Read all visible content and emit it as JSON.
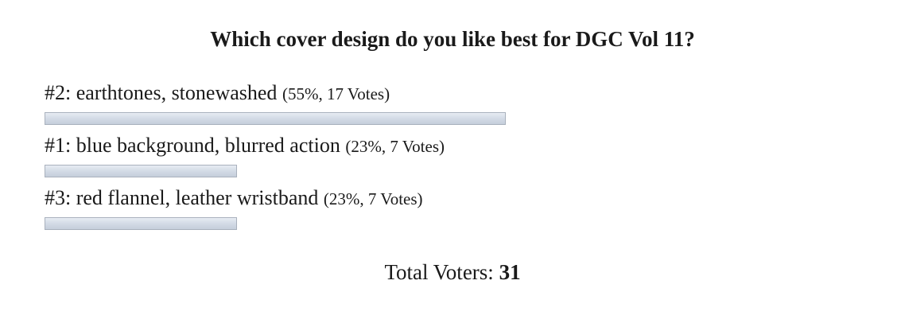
{
  "poll": {
    "question": "Which cover design do you like best for DGC Vol 11?",
    "answers": [
      {
        "label": "#2: earthtones, stonewashed",
        "percent_text": "55%",
        "votes_text": "17 Votes",
        "fraction": 0.55
      },
      {
        "label": "#1: blue background, blurred action",
        "percent_text": "23%",
        "votes_text": "7 Votes",
        "fraction": 0.23
      },
      {
        "label": "#3: red flannel, leather wristband",
        "percent_text": "23%",
        "votes_text": "7 Votes",
        "fraction": 0.23
      }
    ],
    "total_label": "Total Voters:",
    "total_value": "31",
    "bar_color": "#d3dbe6"
  }
}
